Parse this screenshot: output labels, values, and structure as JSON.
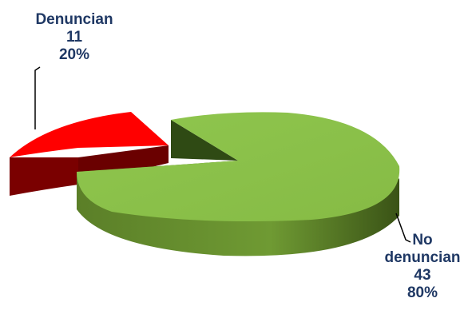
{
  "chart_data": {
    "type": "pie",
    "style": "3d-exploded",
    "slices": [
      {
        "label": "Denuncian",
        "value": 11,
        "percent": "20%",
        "color": "#ff0000",
        "side_color": "#7a0000"
      },
      {
        "label": "No denuncian",
        "value": 43,
        "percent": "80%",
        "color": "#8cc34a",
        "side_color": "#3f5a1a"
      }
    ],
    "label_color": "#1f3864"
  },
  "labels": {
    "denuncian": {
      "name": "Denuncian",
      "value": "11",
      "percent": "20%"
    },
    "no_denuncian": {
      "name_line1": "No",
      "name_line2": "denuncian",
      "value": "43",
      "percent": "80%"
    }
  }
}
